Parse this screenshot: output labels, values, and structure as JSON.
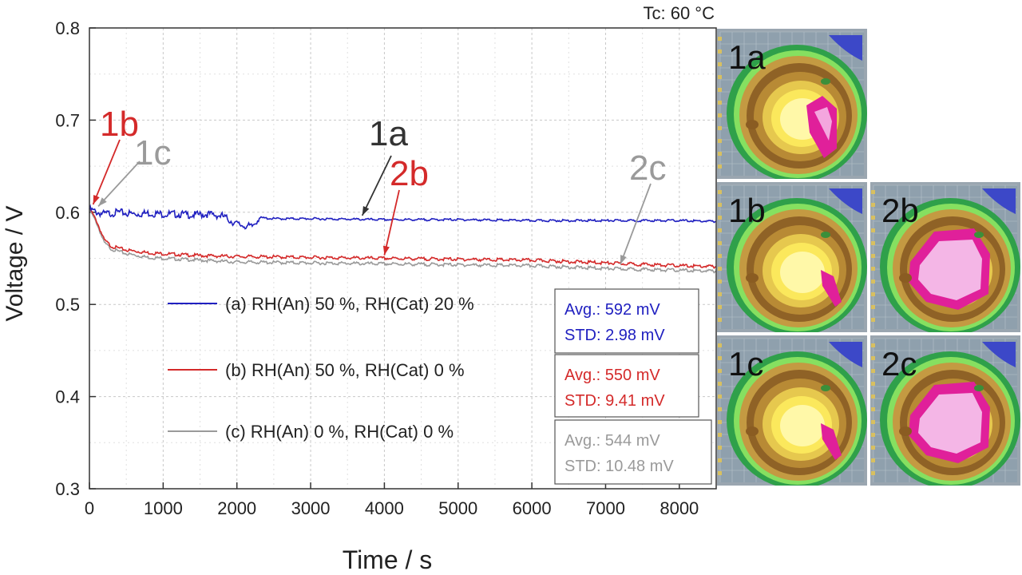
{
  "chart_data": {
    "type": "line",
    "title": "Tc: 60 °C",
    "xlabel": "Time / s",
    "ylabel": "Voltage / V",
    "xlim": [
      0,
      8500
    ],
    "ylim": [
      0.3,
      0.8
    ],
    "xticks": [
      0,
      1000,
      2000,
      3000,
      4000,
      5000,
      6000,
      7000,
      8000
    ],
    "yticks": [
      0.3,
      0.4,
      0.5,
      0.6,
      0.7,
      0.8
    ],
    "ytick_labels": [
      "0.3",
      "0.4",
      "0.5",
      "0.6",
      "0.7",
      "0.8"
    ],
    "grid": true,
    "series": [
      {
        "name": "(a) RH(An) 50 %, RH(Cat) 20 %",
        "color": "#2020c0",
        "x": [
          0,
          100,
          200,
          400,
          600,
          800,
          1000,
          1200,
          1400,
          1600,
          1800,
          2000,
          2200,
          2300,
          2500,
          3000,
          4000,
          5000,
          6000,
          7000,
          8000,
          8500
        ],
        "y": [
          0.603,
          0.6,
          0.598,
          0.6,
          0.598,
          0.599,
          0.598,
          0.598,
          0.597,
          0.598,
          0.596,
          0.587,
          0.584,
          0.594,
          0.593,
          0.593,
          0.592,
          0.592,
          0.591,
          0.591,
          0.591,
          0.59
        ],
        "stats": {
          "avg": "Avg.: 592 mV",
          "std": "STD: 2.98 mV"
        }
      },
      {
        "name": "(b) RH(An) 50 %, RH(Cat) 0 %",
        "color": "#d42a2a",
        "x": [
          0,
          100,
          200,
          300,
          500,
          800,
          1000,
          1500,
          2000,
          3000,
          4000,
          5000,
          6000,
          7000,
          8000,
          8500
        ],
        "y": [
          0.605,
          0.59,
          0.57,
          0.563,
          0.559,
          0.556,
          0.555,
          0.553,
          0.552,
          0.551,
          0.55,
          0.549,
          0.548,
          0.545,
          0.542,
          0.541
        ],
        "stats": {
          "avg": "Avg.: 550 mV",
          "std": "STD: 9.41 mV"
        }
      },
      {
        "name": "(c) RH(An) 0 %, RH(Cat) 0 %",
        "color": "#9a9a9a",
        "x": [
          0,
          100,
          200,
          300,
          500,
          800,
          1000,
          1500,
          2000,
          3000,
          4000,
          5000,
          6000,
          7000,
          8000,
          8500
        ],
        "y": [
          0.603,
          0.588,
          0.567,
          0.56,
          0.555,
          0.551,
          0.55,
          0.548,
          0.546,
          0.545,
          0.544,
          0.543,
          0.542,
          0.539,
          0.537,
          0.536
        ],
        "stats": {
          "avg": "Avg.: 544 mV",
          "std": "STD: 10.48 mV"
        }
      }
    ],
    "annotations": [
      {
        "label": "1a",
        "color": "#333333",
        "x": 3700,
        "y": 0.593
      },
      {
        "label": "1b",
        "color": "#d42a2a",
        "x": 50,
        "y": 0.605
      },
      {
        "label": "1c",
        "color": "#9a9a9a",
        "x": 120,
        "y": 0.603
      },
      {
        "label": "2b",
        "color": "#d42a2a",
        "x": 4000,
        "y": 0.55
      },
      {
        "label": "2c",
        "color": "#9a9a9a",
        "x": 7200,
        "y": 0.54
      }
    ],
    "heatmaps": [
      {
        "label": "1a",
        "hot_level": 1
      },
      {
        "label": "1b",
        "hot_level": 0
      },
      {
        "label": "2b",
        "hot_level": 3
      },
      {
        "label": "1c",
        "hot_level": 0
      },
      {
        "label": "2c",
        "hot_level": 3
      }
    ]
  }
}
